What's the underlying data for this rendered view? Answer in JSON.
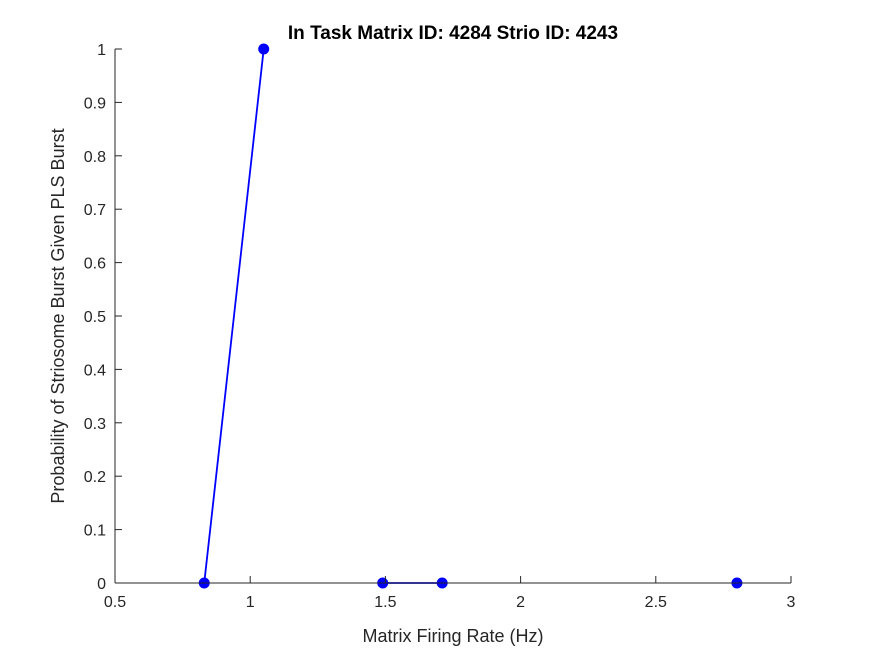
{
  "chart_data": {
    "type": "line",
    "title": "In Task Matrix ID: 4284 Strio ID: 4243",
    "xlabel": "Matrix Firing Rate (Hz)",
    "ylabel": "Probability of Striosome Burst Given PLS Burst",
    "xlim": [
      0.5,
      3
    ],
    "ylim": [
      0,
      1
    ],
    "xticks": [
      "0.5",
      "1",
      "1.5",
      "2",
      "2.5",
      "3"
    ],
    "yticks": [
      "0",
      "0.1",
      "0.2",
      "0.3",
      "0.4",
      "0.5",
      "0.6",
      "0.7",
      "0.8",
      "0.9",
      "1"
    ],
    "grid": false,
    "series": [
      {
        "color": "#0000ff",
        "marker": "circle",
        "x": [
          0.83,
          1.05,
          1.49,
          1.71,
          2.8
        ],
        "y": [
          0,
          1,
          0,
          0,
          0
        ],
        "segments": [
          [
            0,
            1
          ],
          [
            2,
            3
          ]
        ]
      }
    ]
  }
}
